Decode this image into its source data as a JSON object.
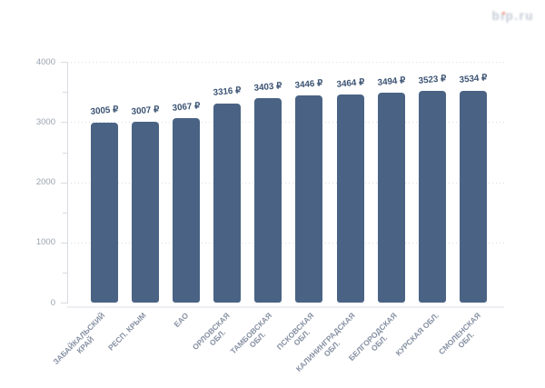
{
  "logo": {
    "text": "bip.ru",
    "color": "#c3c9d5",
    "dot_color": "#f08a6e"
  },
  "chart_data": {
    "type": "bar",
    "title": "",
    "xlabel": "",
    "ylabel": "",
    "categories": [
      "ЗАБАЙКАЛЬСКИЙ\nКРАЙ",
      "РЕСП. КРЫМ",
      "ЕАО",
      "ОРЛОВСКАЯ\nОБЛ.",
      "ТАМБОВСКАЯ\nОБЛ.",
      "ПСКОВСКАЯ\nОБЛ.",
      "КАЛИНИНГРАДСКАЯ\nОБЛ.",
      "БЕЛГОРОДСКАЯ\nОБЛ.",
      "КУРСКАЯ ОБЛ.",
      "СМОЛЕНСКАЯ\nОБЛ."
    ],
    "values": [
      3005,
      3007,
      3067,
      3316,
      3403,
      3446,
      3464,
      3494,
      3523,
      3534
    ],
    "value_labels": [
      "3005 ₽",
      "3007 ₽",
      "3067 ₽",
      "3316 ₽",
      "3403 ₽",
      "3446 ₽",
      "3464 ₽",
      "3494 ₽",
      "3523 ₽",
      "3534 ₽"
    ],
    "value_suffix": " ₽",
    "ylim": [
      0,
      4000
    ],
    "ytick_labels": [
      "0",
      "1000",
      "2000",
      "3000",
      "4000"
    ],
    "ytick_step": 1000,
    "minor_tick_step": 500,
    "grid": "horizontal-dotted",
    "legend": "none",
    "bar_color": "#4a6384",
    "value_label_color": "#3b5373",
    "ytick_label_color": "#9aa2ae",
    "xtick_label_color": "#8791a3"
  }
}
